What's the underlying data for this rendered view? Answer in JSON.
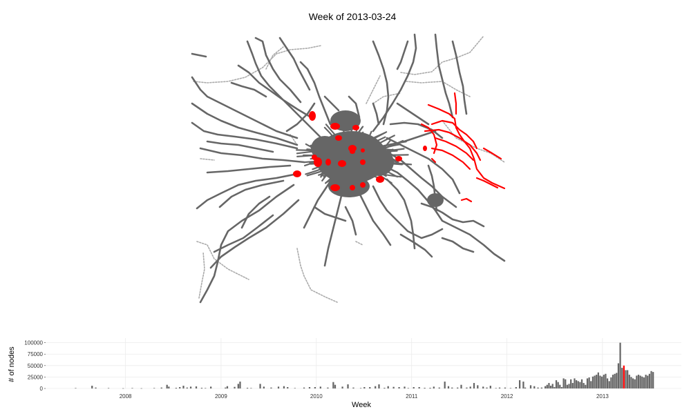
{
  "chart_data": [
    {
      "type": "map",
      "title": "Week of 2013-03-24",
      "colors": {
        "existing": "#666666",
        "faint": "#aaaaaa",
        "highlight": "#ff0000"
      }
    },
    {
      "type": "bar",
      "xlabel": "Week",
      "ylabel": "# of nodes",
      "ylim": [
        0,
        110000
      ],
      "yticks": [
        0,
        25000,
        50000,
        75000,
        100000
      ],
      "ytick_labels": [
        "0",
        "25000",
        "50000",
        "75000",
        "100000"
      ],
      "xlim": [
        "2007-03-01",
        "2013-10-30"
      ],
      "xticks": [
        "2008-01-01",
        "2009-01-01",
        "2010-01-01",
        "2011-01-01",
        "2012-01-01",
        "2013-01-01"
      ],
      "xtick_labels": [
        "2008",
        "2009",
        "2010",
        "2011",
        "2012",
        "2013"
      ],
      "grid": true,
      "highlight_week": "2013-03-24",
      "colors": {
        "bar": "#666666",
        "highlight": "#ff0000",
        "grid": "#ebebeb"
      },
      "weeks": [
        "2007-06-24",
        "2007-08-26",
        "2007-09-09",
        "2007-10-28",
        "2007-12-23",
        "2008-01-27",
        "2008-03-02",
        "2008-04-20",
        "2008-05-18",
        "2008-06-08",
        "2008-06-15",
        "2008-07-13",
        "2008-07-27",
        "2008-08-10",
        "2008-08-24",
        "2008-09-07",
        "2008-09-28",
        "2008-10-19",
        "2008-11-02",
        "2008-11-23",
        "2009-01-18",
        "2009-01-25",
        "2009-02-22",
        "2009-03-08",
        "2009-03-15",
        "2009-04-12",
        "2009-04-26",
        "2009-05-31",
        "2009-06-14",
        "2009-07-12",
        "2009-08-09",
        "2009-08-30",
        "2009-09-13",
        "2009-10-11",
        "2009-11-15",
        "2009-12-06",
        "2009-12-27",
        "2010-01-17",
        "2010-02-14",
        "2010-03-07",
        "2010-03-14",
        "2010-04-11",
        "2010-05-02",
        "2010-05-23",
        "2010-06-20",
        "2010-07-04",
        "2010-07-25",
        "2010-08-15",
        "2010-08-29",
        "2010-09-19",
        "2010-10-03",
        "2010-10-24",
        "2010-11-14",
        "2010-12-05",
        "2010-12-19",
        "2011-01-09",
        "2011-01-30",
        "2011-02-20",
        "2011-03-13",
        "2011-03-27",
        "2011-04-17",
        "2011-05-08",
        "2011-05-22",
        "2011-06-05",
        "2011-06-26",
        "2011-07-10",
        "2011-07-31",
        "2011-08-14",
        "2011-08-28",
        "2011-09-11",
        "2011-10-02",
        "2011-10-16",
        "2011-10-30",
        "2011-11-20",
        "2011-12-04",
        "2011-12-25",
        "2012-01-15",
        "2012-02-05",
        "2012-02-19",
        "2012-03-04",
        "2012-03-11",
        "2012-04-01",
        "2012-04-15",
        "2012-04-29",
        "2012-05-13",
        "2012-05-27",
        "2012-06-03",
        "2012-06-10",
        "2012-06-17",
        "2012-06-24",
        "2012-07-01",
        "2012-07-08",
        "2012-07-15",
        "2012-07-22",
        "2012-07-29",
        "2012-08-05",
        "2012-08-12",
        "2012-08-19",
        "2012-08-26",
        "2012-09-02",
        "2012-09-09",
        "2012-09-16",
        "2012-09-23",
        "2012-09-30",
        "2012-10-07",
        "2012-10-14",
        "2012-10-21",
        "2012-10-28",
        "2012-11-04",
        "2012-11-11",
        "2012-11-18",
        "2012-11-25",
        "2012-12-02",
        "2012-12-09",
        "2012-12-16",
        "2012-12-23",
        "2012-12-30",
        "2013-01-06",
        "2013-01-13",
        "2013-01-20",
        "2013-01-27",
        "2013-02-03",
        "2013-02-10",
        "2013-02-17",
        "2013-02-24",
        "2013-03-03",
        "2013-03-10",
        "2013-03-17",
        "2013-03-24",
        "2013-03-31",
        "2013-04-07",
        "2013-04-14",
        "2013-04-21",
        "2013-04-28",
        "2013-05-05",
        "2013-05-12",
        "2013-05-19",
        "2013-05-26",
        "2013-06-02",
        "2013-06-09",
        "2013-06-16",
        "2013-06-23",
        "2013-06-30",
        "2013-07-07",
        "2013-07-14"
      ],
      "values": [
        1000,
        6000,
        2000,
        1000,
        500,
        1000,
        500,
        1000,
        2000,
        8000,
        4000,
        1500,
        3000,
        6000,
        2000,
        4000,
        4500,
        1500,
        1000,
        4000,
        2000,
        5000,
        3500,
        10000,
        15000,
        1500,
        1000,
        10000,
        4000,
        2000,
        4000,
        5000,
        3000,
        1000,
        2000,
        3000,
        3000,
        4000,
        2000,
        14000,
        8000,
        4000,
        9000,
        2000,
        1000,
        3000,
        3000,
        5000,
        9000,
        1500,
        5000,
        3500,
        3000,
        4000,
        1000,
        3000,
        3000,
        1500,
        1500,
        4000,
        2000,
        15000,
        5000,
        2000,
        2000,
        8000,
        2000,
        4000,
        12000,
        7000,
        4000,
        2000,
        6000,
        1000,
        2000,
        2000,
        1000,
        3000,
        18000,
        15000,
        2000,
        7000,
        5000,
        2000,
        2000,
        5000,
        8000,
        12000,
        6000,
        10000,
        3000,
        18000,
        14000,
        8000,
        3000,
        22000,
        20000,
        8000,
        10000,
        20000,
        12000,
        22000,
        18000,
        16000,
        14000,
        20000,
        12000,
        8000,
        22000,
        24000,
        16000,
        26000,
        28000,
        30000,
        35000,
        28000,
        26000,
        30000,
        32000,
        22000,
        16000,
        24000,
        30000,
        32000,
        34000,
        55000,
        100000,
        45000,
        50000,
        40000,
        40000,
        30000,
        25000,
        22000,
        20000,
        28000,
        30000,
        28000,
        26000,
        24000,
        30000,
        28000,
        32000,
        38000,
        36000
      ]
    }
  ]
}
